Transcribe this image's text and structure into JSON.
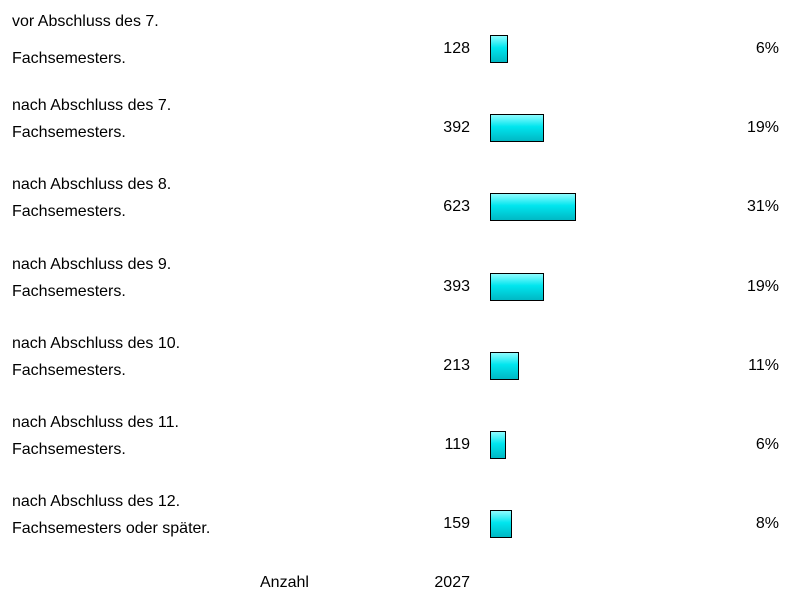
{
  "chart_data": {
    "type": "bar",
    "orientation": "horizontal",
    "categories": [
      "vor Abschluss des 7.\nFachsemesters.",
      "nach Abschluss des 7.\nFachsemesters.",
      "nach Abschluss des 8.\nFachsemesters.",
      "nach Abschluss des 9.\nFachsemesters.",
      "nach Abschluss des 10.\nFachsemesters.",
      "nach Abschluss des 11.\nFachsemesters.",
      "nach Abschluss des 12.\nFachsemesters oder später."
    ],
    "values": [
      128,
      392,
      623,
      393,
      213,
      119,
      159
    ],
    "percentages": [
      "6%",
      "19%",
      "31%",
      "19%",
      "11%",
      "6%",
      "8%"
    ],
    "color": "#00e5ee",
    "total_label": "Anzahl",
    "total": 2027
  }
}
